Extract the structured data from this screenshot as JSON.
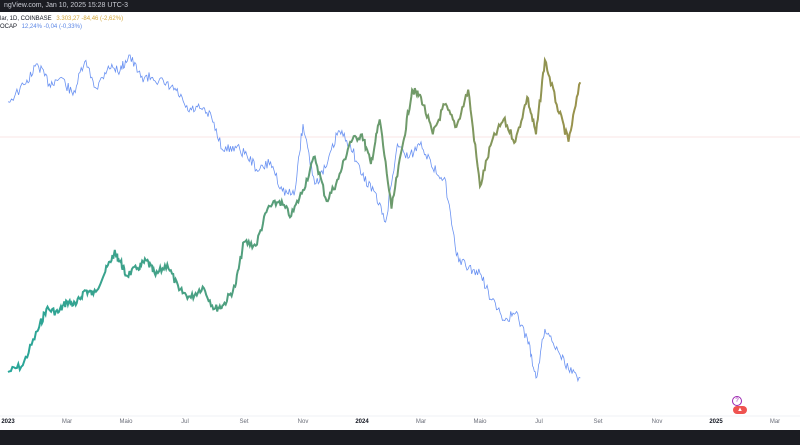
{
  "header": {
    "watermark": "ngView.com, Jan 10, 2025 15:28 UTC-3"
  },
  "legend": {
    "main": {
      "name": "lar, 1D, COINBASE",
      "values": "3.303,27 -84,46 (-2,62%)"
    },
    "dominance": {
      "name": "OCAP",
      "values": "12,24% -0,04 (-0,33%)"
    }
  },
  "badges": {
    "event_a": "?",
    "event_b": "▲"
  },
  "colors": {
    "gradient_start": "#26a69a",
    "gradient_mid": "#6f9a6a",
    "gradient_end": "#c18a2e",
    "dominance_line": "#6a92f2",
    "reference_line": "#f3c9c9",
    "background": "#ffffff",
    "bar_dark": "#1b1c22"
  },
  "chart_data": {
    "type": "line",
    "x_axis": {
      "ticks": [
        {
          "label": "2023",
          "major": true
        },
        {
          "label": "Mar",
          "major": false
        },
        {
          "label": "Maio",
          "major": false
        },
        {
          "label": "Jul",
          "major": false
        },
        {
          "label": "Set",
          "major": false
        },
        {
          "label": "Nov",
          "major": false
        },
        {
          "label": "2024",
          "major": true
        },
        {
          "label": "Mar",
          "major": false
        },
        {
          "label": "Maio",
          "major": false
        },
        {
          "label": "Jul",
          "major": false
        },
        {
          "label": "Set",
          "major": false
        },
        {
          "label": "Nov",
          "major": false
        },
        {
          "label": "2025",
          "major": true
        },
        {
          "label": "Mar",
          "major": false
        }
      ]
    },
    "series": [
      {
        "name": "lar, 1D, COINBASE",
        "values": [
          [
            0,
            1.0
          ],
          [
            0.5,
            1.09
          ],
          [
            1,
            1.55
          ],
          [
            1.3,
            1.85
          ],
          [
            1.7,
            1.8
          ],
          [
            2.0,
            1.95
          ],
          [
            2.3,
            1.9
          ],
          [
            2.6,
            2.1
          ],
          [
            2.9,
            2.05
          ],
          [
            3.3,
            2.35
          ],
          [
            3.6,
            2.6
          ],
          [
            3.8,
            2.5
          ],
          [
            4.0,
            2.3
          ],
          [
            4.4,
            2.4
          ],
          [
            4.7,
            2.5
          ],
          [
            5.0,
            2.3
          ],
          [
            5.4,
            2.45
          ],
          [
            5.8,
            2.1
          ],
          [
            6.2,
            2.0
          ],
          [
            6.6,
            2.15
          ],
          [
            7.0,
            1.85
          ],
          [
            7.3,
            1.9
          ],
          [
            7.7,
            2.15
          ],
          [
            8.0,
            2.75
          ],
          [
            8.4,
            2.7
          ],
          [
            8.8,
            3.2
          ],
          [
            9.2,
            3.3
          ],
          [
            9.6,
            3.1
          ],
          [
            10.0,
            3.45
          ],
          [
            10.4,
            3.9
          ],
          [
            10.8,
            3.3
          ],
          [
            11.2,
            3.6
          ],
          [
            11.6,
            4.1
          ],
          [
            12.0,
            4.2
          ],
          [
            12.3,
            3.8
          ],
          [
            12.6,
            4.4
          ],
          [
            13.0,
            3.2
          ],
          [
            13.4,
            4.1
          ],
          [
            13.7,
            4.8
          ],
          [
            14.0,
            4.7
          ],
          [
            14.4,
            4.2
          ],
          [
            14.8,
            4.6
          ],
          [
            15.2,
            4.3
          ],
          [
            15.6,
            4.8
          ],
          [
            16.0,
            3.5
          ],
          [
            16.4,
            4.1
          ],
          [
            16.8,
            4.4
          ],
          [
            17.2,
            4.1
          ],
          [
            17.6,
            4.7
          ],
          [
            17.9,
            4.2
          ],
          [
            18.2,
            5.2
          ],
          [
            18.6,
            4.6
          ],
          [
            19.0,
            4.1
          ],
          [
            19.4,
            4.9
          ]
        ]
      },
      {
        "name": "OCAP",
        "values": [
          [
            0,
            19.8
          ],
          [
            0.6,
            20.6
          ],
          [
            1.0,
            21.5
          ],
          [
            1.4,
            20.6
          ],
          [
            1.8,
            20.9
          ],
          [
            2.2,
            20.1
          ],
          [
            2.6,
            21.6
          ],
          [
            3.0,
            20.4
          ],
          [
            3.4,
            21.4
          ],
          [
            3.8,
            21.2
          ],
          [
            4.1,
            21.9
          ],
          [
            4.5,
            20.9
          ],
          [
            4.9,
            20.9
          ],
          [
            5.3,
            20.6
          ],
          [
            5.7,
            20.3
          ],
          [
            6.1,
            19.4
          ],
          [
            6.5,
            19.5
          ],
          [
            6.9,
            19.1
          ],
          [
            7.3,
            17.6
          ],
          [
            7.7,
            17.8
          ],
          [
            8.1,
            17.4
          ],
          [
            8.5,
            16.7
          ],
          [
            8.9,
            17.1
          ],
          [
            9.3,
            15.8
          ],
          [
            9.7,
            15.6
          ],
          [
            10.0,
            18.8
          ],
          [
            10.4,
            16.1
          ],
          [
            10.8,
            16.9
          ],
          [
            11.2,
            18.5
          ],
          [
            11.6,
            17.9
          ],
          [
            12.0,
            16.5
          ],
          [
            12.4,
            15.8
          ],
          [
            12.8,
            14.4
          ],
          [
            13.2,
            17.9
          ],
          [
            13.6,
            17.3
          ],
          [
            14.0,
            18.0
          ],
          [
            14.4,
            16.8
          ],
          [
            14.8,
            16.4
          ],
          [
            15.2,
            12.9
          ],
          [
            15.6,
            12.3
          ],
          [
            16.0,
            12.1
          ],
          [
            16.4,
            10.9
          ],
          [
            16.8,
            10.0
          ],
          [
            17.2,
            10.3
          ],
          [
            17.6,
            9.2
          ],
          [
            17.9,
            7.4
          ],
          [
            18.2,
            9.6
          ],
          [
            18.6,
            8.8
          ],
          [
            19.0,
            7.8
          ],
          [
            19.4,
            7.4
          ]
        ]
      }
    ]
  }
}
